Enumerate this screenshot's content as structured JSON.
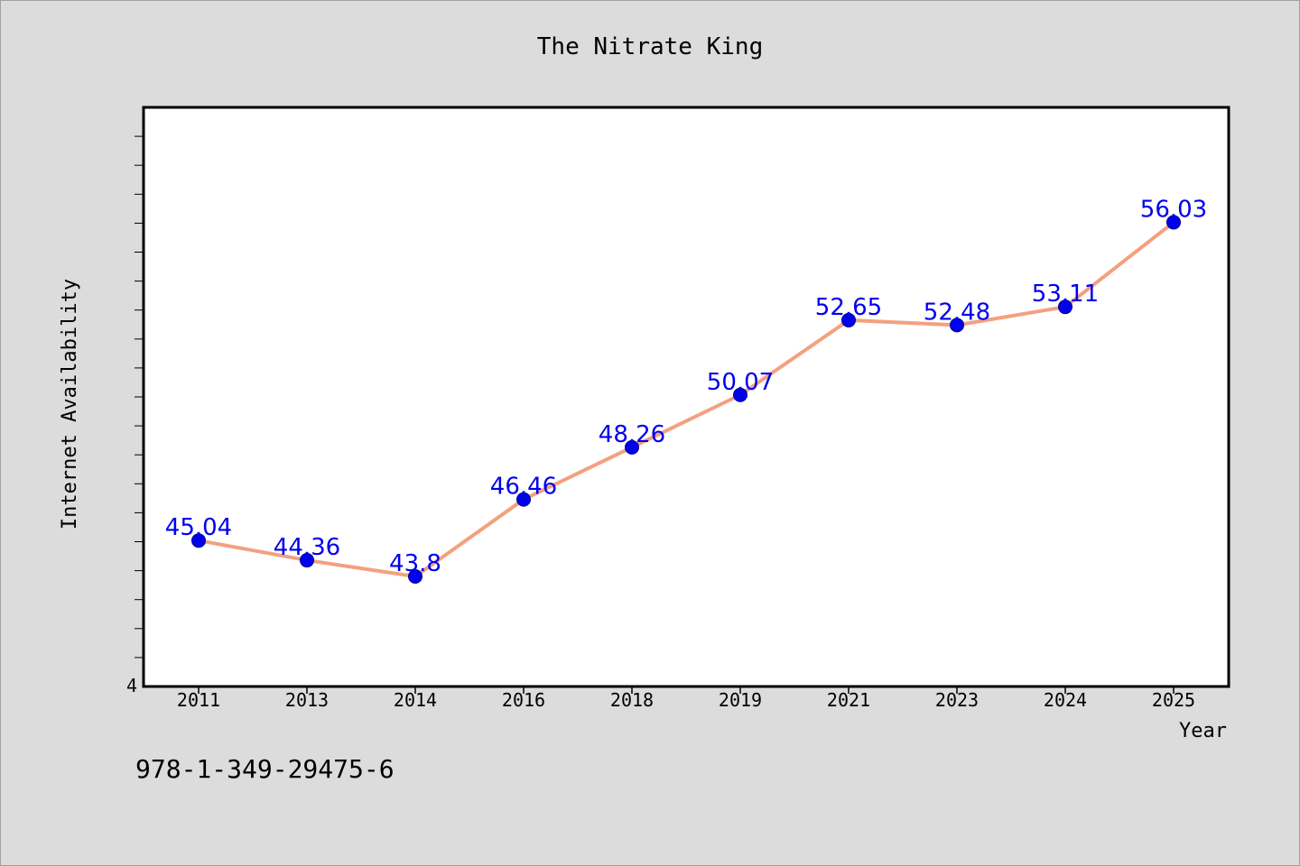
{
  "chart_data": {
    "type": "line",
    "title": "The Nitrate King",
    "xlabel": "Year",
    "ylabel": "Internet Availability",
    "categories": [
      "2011",
      "2013",
      "2014",
      "2016",
      "2018",
      "2019",
      "2021",
      "2023",
      "2024",
      "2025"
    ],
    "values": [
      45.04,
      44.36,
      43.8,
      46.46,
      48.26,
      50.07,
      52.65,
      52.48,
      53.11,
      56.03
    ],
    "data_labels": [
      "45.04",
      "44.36",
      "43.8",
      "46.46",
      "48.26",
      "50.07",
      "52.65",
      "52.48",
      "53.11",
      "56.03"
    ],
    "ylim": [
      40,
      60
    ],
    "y_tick_labels": [
      "4"
    ],
    "grid": false,
    "legend": "none",
    "line_color": "#f4a07f",
    "marker_color": "#0000ee",
    "label_color": "#0000ee"
  },
  "footer": {
    "isbn": "978-1-349-29475-6"
  }
}
